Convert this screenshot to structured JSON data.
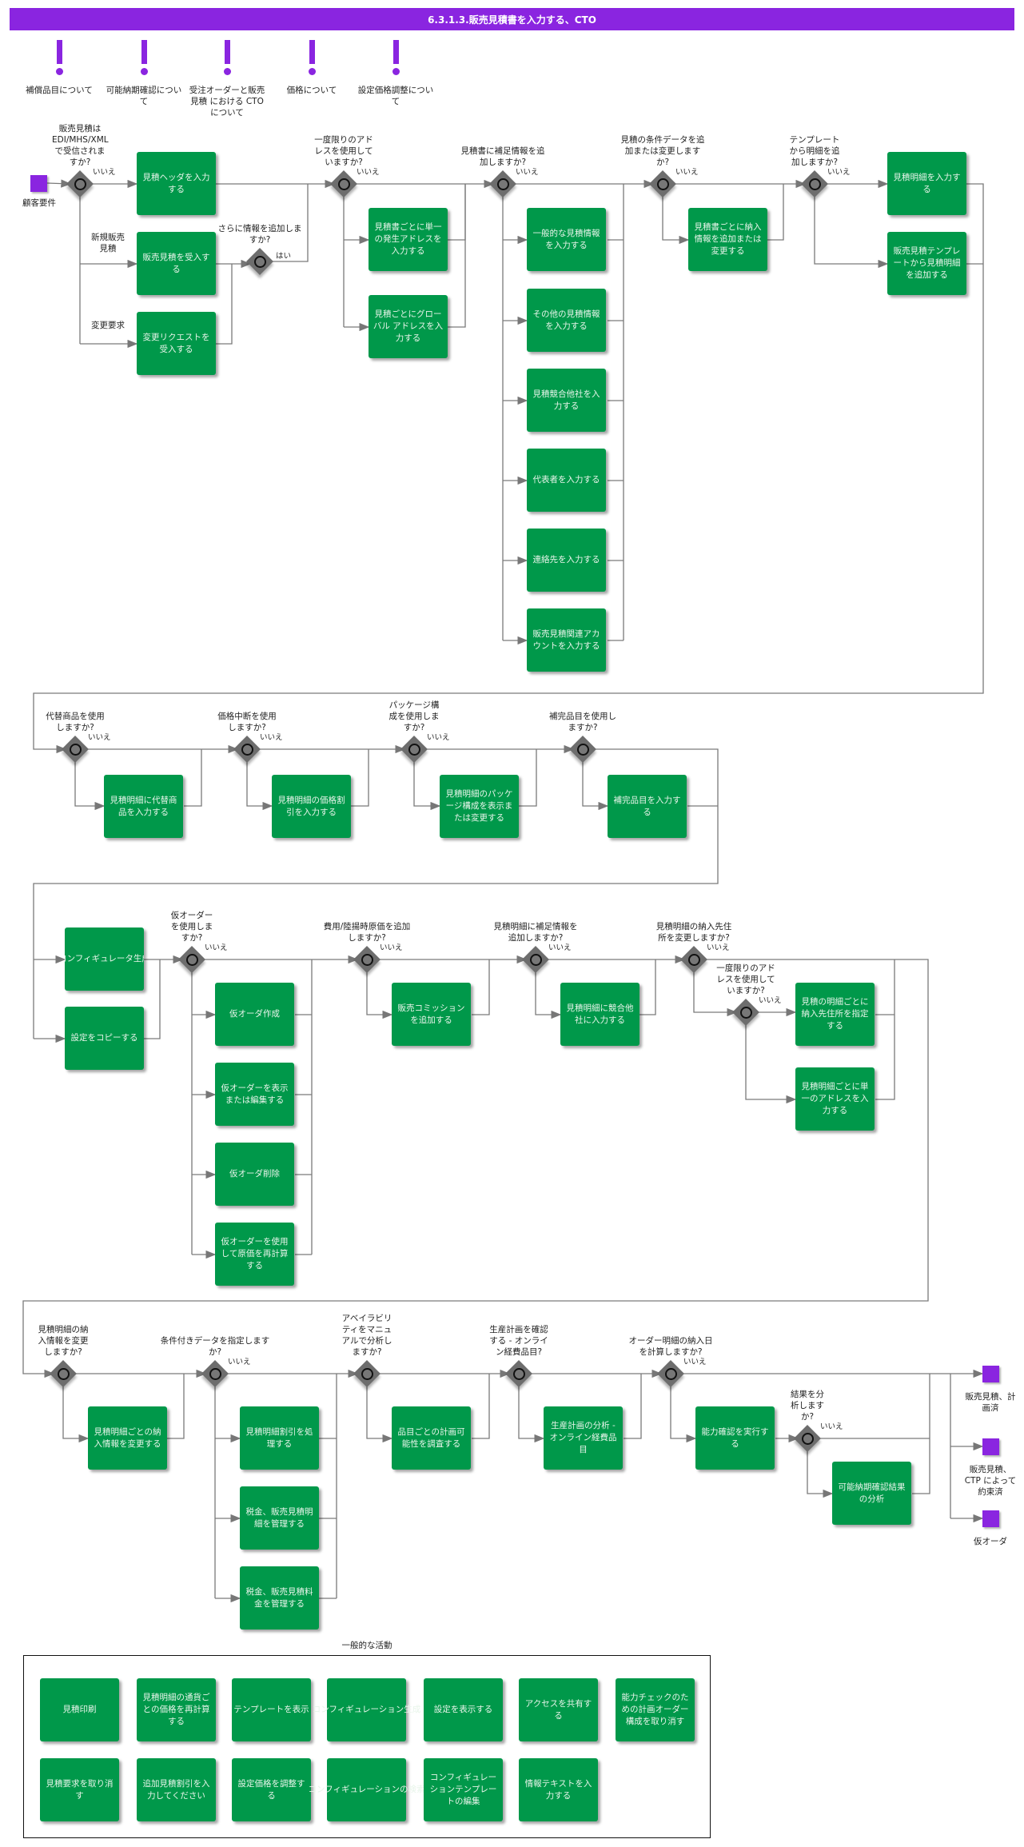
{
  "title": "6.3.1.3.販売見積書を入力する、CTO",
  "colors": {
    "title_bar": "#8a25e0",
    "task": "#00984a",
    "gateway": "#6d6d6d",
    "event": "#8a25e0"
  },
  "notes": [
    "補償品目について",
    "可能納期確認について",
    "受注オーダーと販売見積 における CTO について",
    "価格について",
    "設定価格調整について"
  ],
  "start_event": "顧客要件",
  "branch_labels": {
    "new_quote": "新規販売見積",
    "change_request": "変更要求",
    "yes": "はい"
  },
  "gateways": [
    {
      "question": "販売見積はEDI/MHS/XMLで受信されますか?",
      "flow_label": "いいえ"
    },
    {
      "question": "さらに情報を追加しますか?",
      "flow_label": "はい"
    },
    {
      "question": "一度限りのアドレスを使用していますか?",
      "flow_label": "いいえ"
    },
    {
      "question": "見積書に補足情報を追加しますか?",
      "flow_label": "いいえ"
    },
    {
      "question": "見積の条件データを追加または変更しますか?",
      "flow_label": "いいえ"
    },
    {
      "question": "テンプレートから明細を追加しますか?",
      "flow_label": "いいえ"
    },
    {
      "question": "代替商品を使用しますか?",
      "flow_label": "いいえ"
    },
    {
      "question": "価格中断を使用しますか?",
      "flow_label": "いいえ"
    },
    {
      "question": "パッケージ構成を使用しますか?",
      "flow_label": "いいえ"
    },
    {
      "question": "補完品目を使用しますか?",
      "flow_label": ""
    },
    {
      "question": "仮オーダーを使用しますか?",
      "flow_label": "いいえ"
    },
    {
      "question": "費用/陸揚時原価を追加しますか?",
      "flow_label": "いいえ"
    },
    {
      "question": "見積明細に補足情報を追加しますか?",
      "flow_label": "いいえ"
    },
    {
      "question": "見積明細の納入先住所を変更しますか?",
      "flow_label": "いいえ"
    },
    {
      "question": "一度限りのアドレスを使用していますか?",
      "flow_label": "いいえ"
    },
    {
      "question": "見積明細の納入情報を変更しますか?",
      "flow_label": ""
    },
    {
      "question": "条件付きデータを指定しますか?",
      "flow_label": "いいえ"
    },
    {
      "question": "アベイラビリティをマニュアルで分析しますか?",
      "flow_label": ""
    },
    {
      "question": "生産計画を確認する - オンライン経費品目?",
      "flow_label": ""
    },
    {
      "question": "オーダー明細の納入日を計算しますか?",
      "flow_label": "いいえ"
    },
    {
      "question": "結果を分析しますか?",
      "flow_label": "いいえ"
    }
  ],
  "tasks": [
    "見積ヘッダを入力する",
    "販売見積を受入する",
    "変更リクエストを受入する",
    "見積書ごとに単一の発生アドレスを入力する",
    "見積ごとにグローバル アドレスを入力する",
    "一般的な見積情報を入力する",
    "その他の見積情報を入力する",
    "見積競合他社を入力する",
    "代表者を入力する",
    "連絡先を入力する",
    "販売見積関連アカウントを入力する",
    "見積書ごとに納入情報を追加または変更する",
    "見積明細を入力する",
    "販売見積テンプレートから見積明細を追加する",
    "見積明細に代替商品を入力する",
    "見積明細の価格割引を入力する",
    "見積明細のパッケージ構成を表示または変更する",
    "補完品目を入力する",
    "コンフィギュレータ生成",
    "設定をコピーする",
    "仮オーダ作成",
    "仮オーダーを表示または編集する",
    "仮オーダ削除",
    "仮オーダーを使用して原価を再計算する",
    "販売コミッションを追加する",
    "見積明細に競合他社に入力する",
    "見積の明細ごとに納入先住所を指定する",
    "見積明細ごとに単一のアドレスを入力する",
    "見積明細ごとの納入情報を変更する",
    "見積明細割引を処理する",
    "税金、販売見積明細を管理する",
    "税金、販売見積料金を管理する",
    "品目ごとの計画可能性を調査する",
    "生産計画の分析 - オンライン経費品目",
    "能力確認を実行する",
    "可能納期確認結果の分析"
  ],
  "end_events": [
    "販売見積、計画済",
    "販売見積、CTP によって約束済",
    "仮オーダ"
  ],
  "general_activities": {
    "title": "一般的な活動",
    "items": [
      "見積印刷",
      "見積明細の通貨ごとの価格を再計算する",
      "テンプレートを表示",
      "コンフィギュレーション生成",
      "設定を表示する",
      "アクセスを共有する",
      "能力チェックのための計画オーダー構成を取り消す",
      "見積要求を取り消す",
      "追加見積割引を入力してください",
      "設定価格を調整する",
      "コンフィギュレーションの検索",
      "コンフィギュレーションテンプレートの編集",
      "情報テキストを入力する"
    ]
  }
}
